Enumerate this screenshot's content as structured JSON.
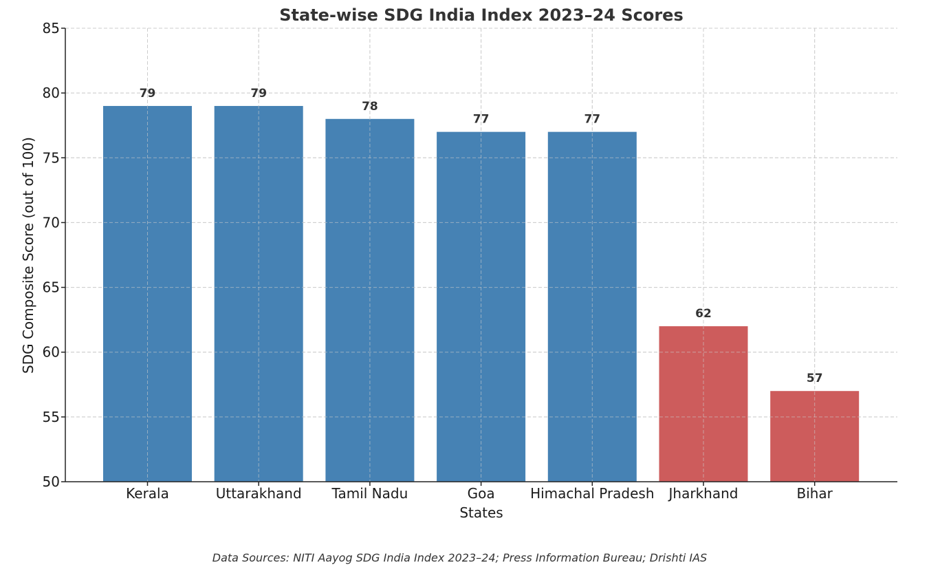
{
  "chart_data": {
    "type": "bar",
    "title": "State-wise SDG India Index 2023–24 Scores",
    "xlabel": "States",
    "ylabel": "SDG Composite Score (out of 100)",
    "categories": [
      "Kerala",
      "Uttarakhand",
      "Tamil Nadu",
      "Goa",
      "Himachal Pradesh",
      "Jharkhand",
      "Bihar"
    ],
    "values": [
      79,
      79,
      78,
      77,
      77,
      62,
      57
    ],
    "colors": [
      "#4682B4",
      "#4682B4",
      "#4682B4",
      "#4682B4",
      "#4682B4",
      "#CD5C5C",
      "#CD5C5C"
    ],
    "ylim": [
      50,
      85
    ],
    "yticks": [
      50,
      55,
      60,
      65,
      70,
      75,
      80,
      85
    ],
    "grid": true
  },
  "footnote": "Data Sources: NITI Aayog SDG India Index 2023–24; Press Information Bureau; Drishti IAS"
}
